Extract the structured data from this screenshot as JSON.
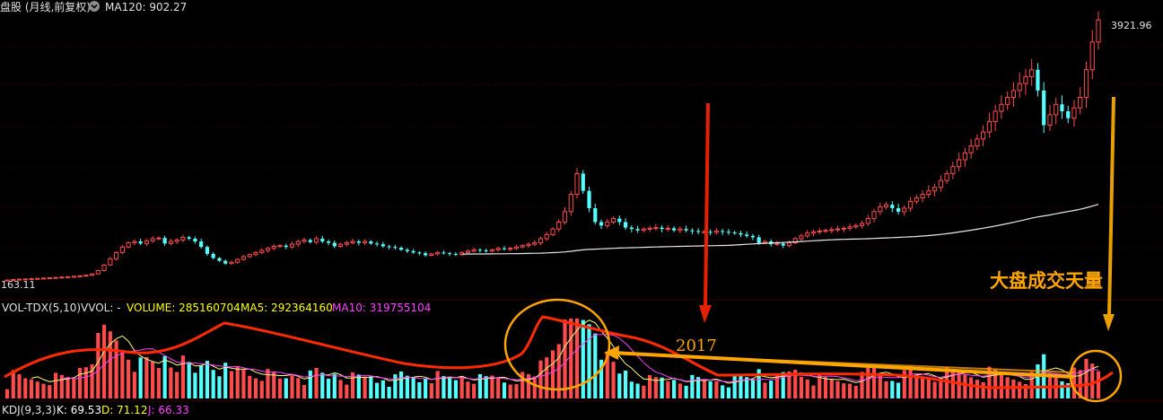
{
  "header": {
    "title": "盘股 (月线,前复权)",
    "ma_label": "MA120: 902.27",
    "settings_icon": "circle-chevron-icon"
  },
  "price_panel": {
    "last_price_label": "3921.96",
    "low_price_label": "163.11"
  },
  "volume_panel": {
    "indicator": "VOL-TDX(5,10)",
    "vvol": "VVOL: -",
    "volume": "VOLUME: 285160704",
    "ma5": "MA5: 292364160",
    "ma10": "MA10: 319755104"
  },
  "kdj_panel": {
    "indicator": "KDJ(9,3,3)",
    "k": "K: 69.53",
    "d": "D: 71.12",
    "j": "J: 66.33"
  },
  "annotations": {
    "big_volume": "大盘成交天量",
    "year": "2017"
  },
  "colors": {
    "background": "#000000",
    "up": "#ff4b4b",
    "down": "#54ffff",
    "ma_line": "#e8e8e8",
    "vol_ma5": "#ffff80",
    "vol_ma10": "#ff40ff",
    "annotation_red": "#ff2a00",
    "annotation_orange": "#ffa500",
    "text_white": "#e0e0e0",
    "volume_text": "#ffff00"
  },
  "chart_data": {
    "type": "candlestick",
    "timeframe": "monthly",
    "price_range": [
      163.11,
      3921.96
    ],
    "ma120_last": 902.27,
    "closes": [
      163,
      170,
      175,
      178,
      182,
      186,
      190,
      195,
      200,
      205,
      210,
      216,
      222,
      232,
      250,
      300,
      380,
      470,
      560,
      640,
      700,
      720,
      690,
      730,
      760,
      770,
      690,
      720,
      740,
      780,
      760,
      720,
      640,
      540,
      480,
      440,
      400,
      420,
      460,
      500,
      530,
      560,
      590,
      620,
      650,
      660,
      640,
      680,
      720,
      740,
      710,
      760,
      720,
      700,
      650,
      680,
      700,
      720,
      700,
      720,
      690,
      680,
      650,
      640,
      630,
      600,
      580,
      560,
      550,
      520,
      540,
      560,
      550,
      540,
      530,
      560,
      580,
      600,
      590,
      580,
      600,
      620,
      610,
      620,
      640,
      660,
      680,
      700,
      760,
      820,
      900,
      1000,
      1150,
      1400,
      1700,
      1450,
      1200,
      1000,
      950,
      1000,
      1050,
      1000,
      920,
      900,
      880,
      900,
      910,
      920,
      900,
      910,
      880,
      900,
      880,
      870,
      860,
      860,
      850,
      870,
      860,
      850,
      840,
      820,
      800,
      780,
      700,
      720,
      680,
      690,
      660,
      700,
      760,
      800,
      840,
      860,
      870,
      880,
      890,
      900,
      910,
      930,
      950,
      980,
      1050,
      1150,
      1220,
      1250,
      1200,
      1150,
      1200,
      1300,
      1350,
      1400,
      1450,
      1500,
      1600,
      1700,
      1800,
      1900,
      2000,
      2100,
      2200,
      2300,
      2450,
      2600,
      2700,
      2800,
      2900,
      3000,
      3100,
      3200,
      2900,
      2400,
      2550,
      2700,
      2600,
      2500,
      2650,
      2800,
      3200,
      3600,
      3921.96
    ],
    "volume_last": 285160704,
    "volume_ma5_last": 292364160,
    "volume_ma10_last": 319755104,
    "kdj": {
      "K": 69.53,
      "D": 71.12,
      "J": 66.33
    }
  }
}
